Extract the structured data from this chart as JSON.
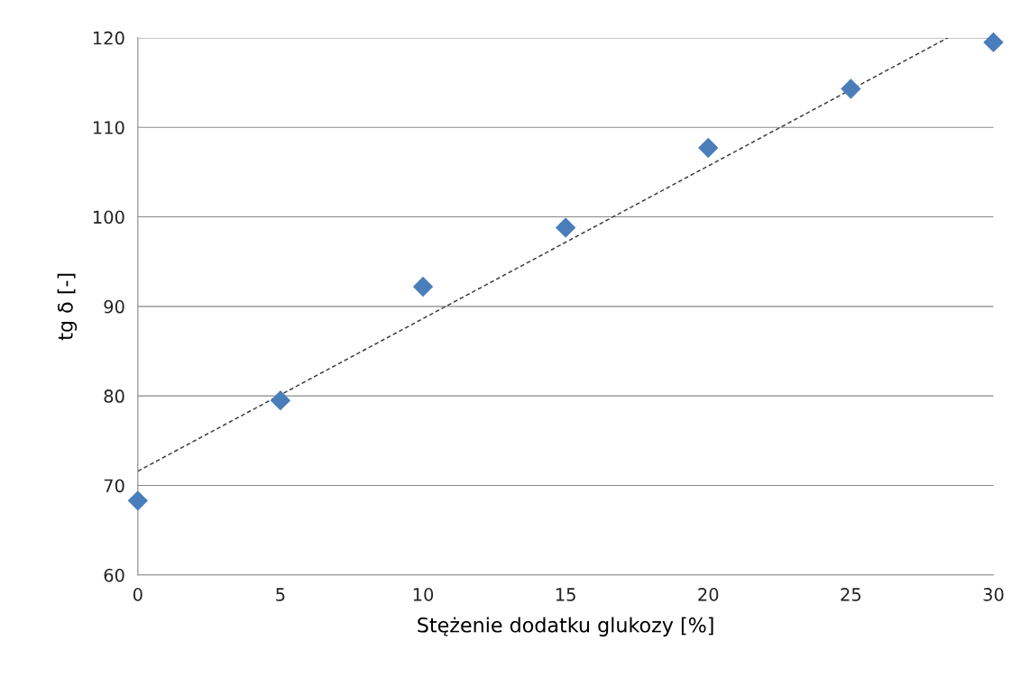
{
  "chart_data": {
    "type": "scatter",
    "xlabel": "Stężenie dodatku glukozy [%]",
    "ylabel": "tg δ [-]",
    "xlim": [
      0,
      30
    ],
    "xticks": [
      0,
      5,
      10,
      15,
      20,
      25,
      30
    ],
    "ylim": [
      60,
      120
    ],
    "yticks": [
      60,
      70,
      80,
      90,
      100,
      110,
      120
    ],
    "grid": "y",
    "series": [
      {
        "marker": "diamond",
        "color": "#4a7ebb",
        "x": [
          0,
          5,
          10,
          15,
          20,
          25,
          30
        ],
        "values": [
          68.3,
          79.5,
          92.2,
          98.8,
          107.7,
          114.3,
          119.5
        ]
      },
      {
        "type": "line",
        "color": "#404040",
        "line_style": "dashed",
        "x": [
          0,
          28.4
        ],
        "values": [
          71.6,
          120
        ]
      }
    ]
  }
}
